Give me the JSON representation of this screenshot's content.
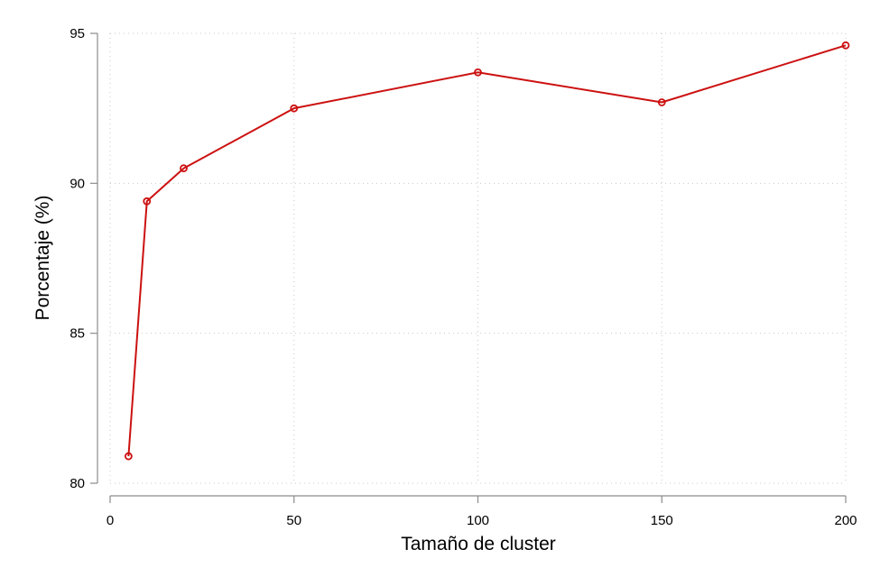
{
  "chart_data": {
    "type": "line",
    "title": "",
    "xlabel": "Tamaño de cluster",
    "ylabel": "Porcentaje (%)",
    "xlim": [
      0,
      200
    ],
    "ylim": [
      80,
      95
    ],
    "xticks": [
      0,
      50,
      100,
      150,
      200
    ],
    "yticks": [
      80,
      85,
      90,
      95
    ],
    "grid": true,
    "grid_style": "dotted",
    "line_color": "#cc1111",
    "series": [
      {
        "x": [
          5,
          10,
          20,
          50,
          100,
          150,
          200
        ],
        "y": [
          80.9,
          89.4,
          90.5,
          92.5,
          93.7,
          92.7,
          94.6
        ]
      }
    ]
  }
}
